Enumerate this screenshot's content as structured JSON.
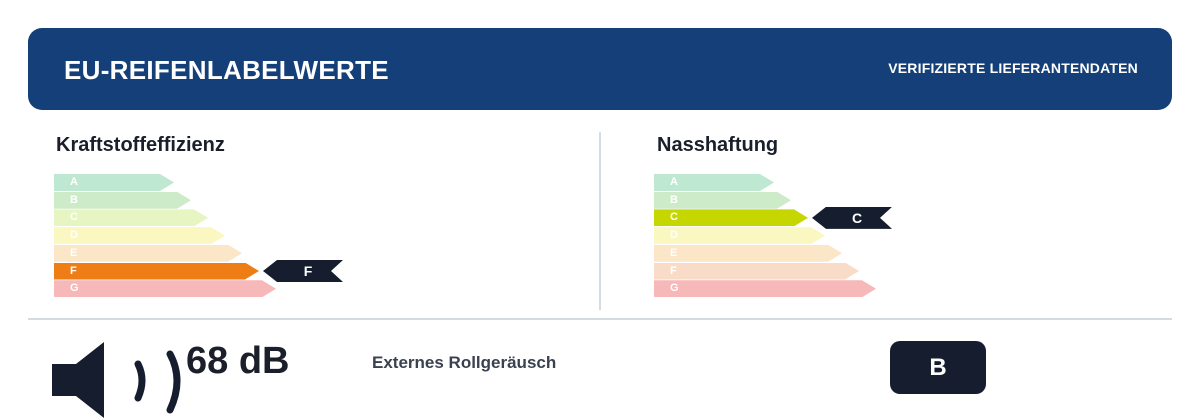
{
  "header": {
    "title": "EU-REIFENLABELWERTE",
    "badge": "VERIFIZIERTE LIEFERANTENDATEN",
    "color": "#143f78"
  },
  "fuel": {
    "title": "Kraftstoffeffizienz",
    "rating": "F",
    "grades": [
      {
        "label": "A",
        "color": "#bfe8d3"
      },
      {
        "label": "B",
        "color": "#cdebc9"
      },
      {
        "label": "C",
        "color": "#e6f5c2"
      },
      {
        "label": "D",
        "color": "#fbf7c0"
      },
      {
        "label": "E",
        "color": "#fbe6c8"
      },
      {
        "label": "F",
        "color": "#ee7d16"
      },
      {
        "label": "G",
        "color": "#f6b8b8"
      }
    ]
  },
  "wet": {
    "title": "Nasshaftung",
    "rating": "C",
    "grades": [
      {
        "label": "A",
        "color": "#bfe8d3"
      },
      {
        "label": "B",
        "color": "#cdebc9"
      },
      {
        "label": "C",
        "color": "#c5d600"
      },
      {
        "label": "D",
        "color": "#fbf7c0"
      },
      {
        "label": "E",
        "color": "#fbe6c8"
      },
      {
        "label": "F",
        "color": "#f8dcc7"
      },
      {
        "label": "G",
        "color": "#f6b8b8"
      }
    ]
  },
  "noise": {
    "value": "68 dB",
    "label": "Externes Rollgeräusch",
    "class": "B",
    "icon": "speaker-icon"
  }
}
